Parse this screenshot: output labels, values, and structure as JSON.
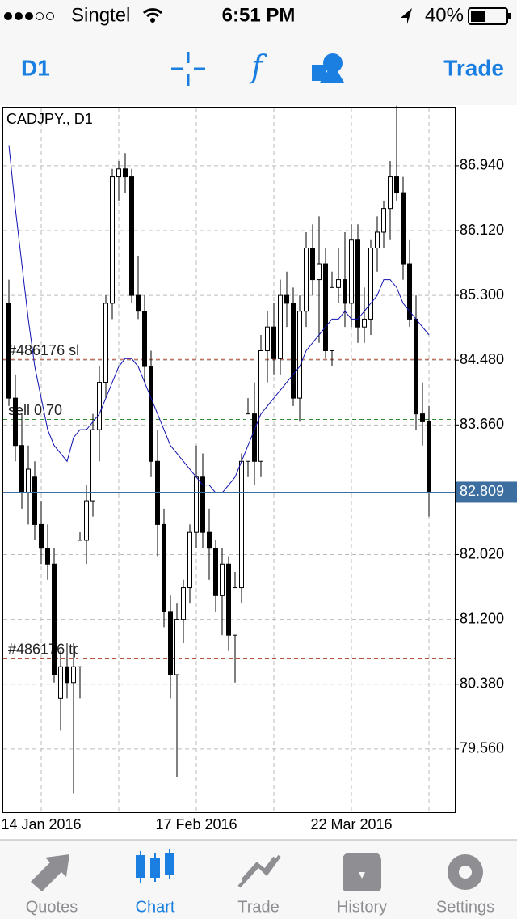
{
  "status_bar": {
    "carrier": "Singtel",
    "time": "6:51 PM",
    "battery": "40%"
  },
  "toolbar": {
    "timeframe": "D1",
    "action": "Trade"
  },
  "chart_data": {
    "type": "candlestick",
    "title": "CADJPY., D1",
    "categories": [
      null,
      null,
      null,
      null,
      null,
      "14 Jan 2016",
      null,
      null,
      null,
      null,
      null,
      null,
      null,
      null,
      null,
      null,
      null,
      null,
      null,
      null,
      null,
      null,
      null,
      null,
      null,
      null,
      null,
      null,
      null,
      "17 Feb 2016",
      null,
      null,
      null,
      null,
      null,
      null,
      null,
      null,
      null,
      null,
      null,
      null,
      null,
      null,
      null,
      null,
      null,
      null,
      null,
      null,
      null,
      null,
      null,
      "22 Mar 2016",
      null,
      null,
      null,
      null,
      null,
      null,
      null,
      null,
      null,
      null,
      null,
      null
    ],
    "open": [
      85.2,
      84.0,
      83.4,
      82.8,
      83.0,
      82.4,
      82.1,
      81.9,
      80.2,
      80.6,
      80.4,
      80.6,
      82.2,
      82.7,
      83.6,
      84.2,
      85.2,
      86.8,
      86.9,
      86.8,
      85.3,
      85.1,
      84.4,
      83.2,
      82.4,
      81.3,
      80.5,
      81.2,
      81.6,
      82.3,
      83.0,
      82.3,
      82.1,
      81.5,
      81.9,
      81.0,
      81.6,
      83.2,
      83.8,
      83.2,
      84.6,
      84.9,
      84.5,
      85.3,
      85.2,
      84.0,
      85.1,
      85.9,
      85.5,
      85.7,
      84.6,
      85.4,
      85.5,
      85.2,
      86.0,
      84.9,
      85.0,
      85.9,
      86.1,
      86.4,
      86.8,
      86.6,
      85.7,
      85.0,
      83.8,
      83.7
    ],
    "high": [
      85.5,
      84.3,
      83.8,
      83.4,
      83.2,
      82.7,
      82.4,
      82.1,
      80.8,
      80.9,
      80.9,
      82.3,
      82.9,
      83.8,
      84.4,
      85.3,
      86.9,
      87.0,
      87.1,
      86.9,
      85.8,
      85.3,
      84.6,
      83.6,
      82.6,
      81.5,
      81.4,
      81.7,
      82.4,
      83.4,
      83.3,
      82.6,
      82.2,
      82.1,
      82.0,
      81.8,
      83.3,
      84.0,
      84.2,
      84.8,
      85.1,
      85.2,
      85.5,
      85.6,
      85.4,
      85.3,
      86.1,
      86.2,
      86.3,
      85.9,
      85.6,
      85.9,
      86.1,
      86.2,
      86.2,
      85.4,
      86.0,
      86.3,
      86.5,
      87.0,
      87.7,
      86.8,
      86.0,
      85.3,
      84.2,
      83.9
    ],
    "low": [
      83.9,
      83.2,
      82.6,
      82.4,
      82.2,
      81.9,
      81.7,
      80.4,
      79.8,
      80.2,
      79.0,
      80.2,
      81.9,
      82.5,
      83.2,
      84.0,
      85.0,
      86.5,
      86.6,
      85.2,
      85.0,
      84.2,
      83.0,
      82.0,
      81.1,
      80.2,
      79.2,
      80.9,
      81.4,
      82.1,
      82.1,
      81.7,
      81.3,
      81.0,
      80.8,
      80.4,
      81.4,
      83.0,
      82.9,
      83.0,
      84.2,
      84.3,
      84.3,
      84.9,
      83.9,
      83.7,
      84.9,
      85.3,
      84.7,
      84.5,
      84.4,
      85.2,
      84.9,
      84.9,
      84.7,
      84.7,
      84.8,
      85.6,
      85.9,
      86.0,
      86.5,
      85.5,
      84.9,
      83.6,
      83.4,
      82.5
    ],
    "close": [
      84.0,
      83.4,
      82.8,
      83.1,
      82.4,
      82.1,
      81.9,
      80.5,
      80.6,
      80.4,
      80.6,
      82.2,
      82.7,
      83.6,
      84.2,
      85.2,
      86.8,
      86.9,
      86.8,
      85.3,
      85.1,
      84.4,
      83.2,
      82.4,
      81.3,
      80.5,
      81.2,
      81.6,
      82.3,
      83.0,
      82.3,
      82.1,
      81.5,
      81.9,
      81.0,
      81.6,
      83.2,
      83.8,
      83.2,
      84.6,
      84.9,
      84.5,
      85.3,
      85.2,
      84.0,
      85.1,
      85.9,
      85.5,
      85.7,
      84.6,
      85.4,
      85.5,
      85.2,
      86.0,
      84.9,
      85.0,
      85.9,
      86.1,
      86.4,
      86.8,
      86.6,
      85.7,
      85.0,
      83.8,
      83.7,
      82.809
    ],
    "ma": {
      "color": "#1010b0",
      "values": [
        87.2,
        86.4,
        85.7,
        85.0,
        84.4,
        84.0,
        83.6,
        83.4,
        83.3,
        83.2,
        83.5,
        83.6,
        83.6,
        83.7,
        83.8,
        84.0,
        84.2,
        84.4,
        84.5,
        84.5,
        84.4,
        84.2,
        84.0,
        83.8,
        83.6,
        83.4,
        83.3,
        83.2,
        83.1,
        83.0,
        82.9,
        82.9,
        82.8,
        82.8,
        82.9,
        83.0,
        83.2,
        83.4,
        83.6,
        83.8,
        83.9,
        84.0,
        84.1,
        84.2,
        84.3,
        84.4,
        84.6,
        84.7,
        84.8,
        84.9,
        85.0,
        85.0,
        85.1,
        85.0,
        85.0,
        85.1,
        85.2,
        85.3,
        85.5,
        85.5,
        85.4,
        85.2,
        85.1,
        85.0,
        84.9,
        84.8
      ]
    },
    "ylim": [
      78.76,
      87.676
    ],
    "yticks": [
      {
        "value": 86.94,
        "label": "86.940"
      },
      {
        "value": 86.12,
        "label": "86.120"
      },
      {
        "value": 85.3,
        "label": "85.300"
      },
      {
        "value": 84.48,
        "label": "84.480"
      },
      {
        "value": 83.66,
        "label": "83.660"
      },
      {
        "value": 82.02,
        "label": "82.020"
      },
      {
        "value": 81.2,
        "label": "81.200"
      },
      {
        "value": 80.38,
        "label": "80.380"
      },
      {
        "value": 79.56,
        "label": "79.560"
      }
    ],
    "grid": true,
    "levels": [
      {
        "label": "#486176 sl",
        "value": 84.49,
        "color": "#b5533c"
      },
      {
        "label": "sell 0.70",
        "value": 83.73,
        "color": "#2e8b2e"
      },
      {
        "label": "#486176 tp",
        "value": 80.71,
        "color": "#b5533c"
      }
    ],
    "current": {
      "value": 82.809,
      "color": "#3c6e9f"
    }
  },
  "tab_bar": {
    "tabs": [
      "Quotes",
      "Chart",
      "Trade",
      "History",
      "Settings"
    ],
    "active": 1
  }
}
